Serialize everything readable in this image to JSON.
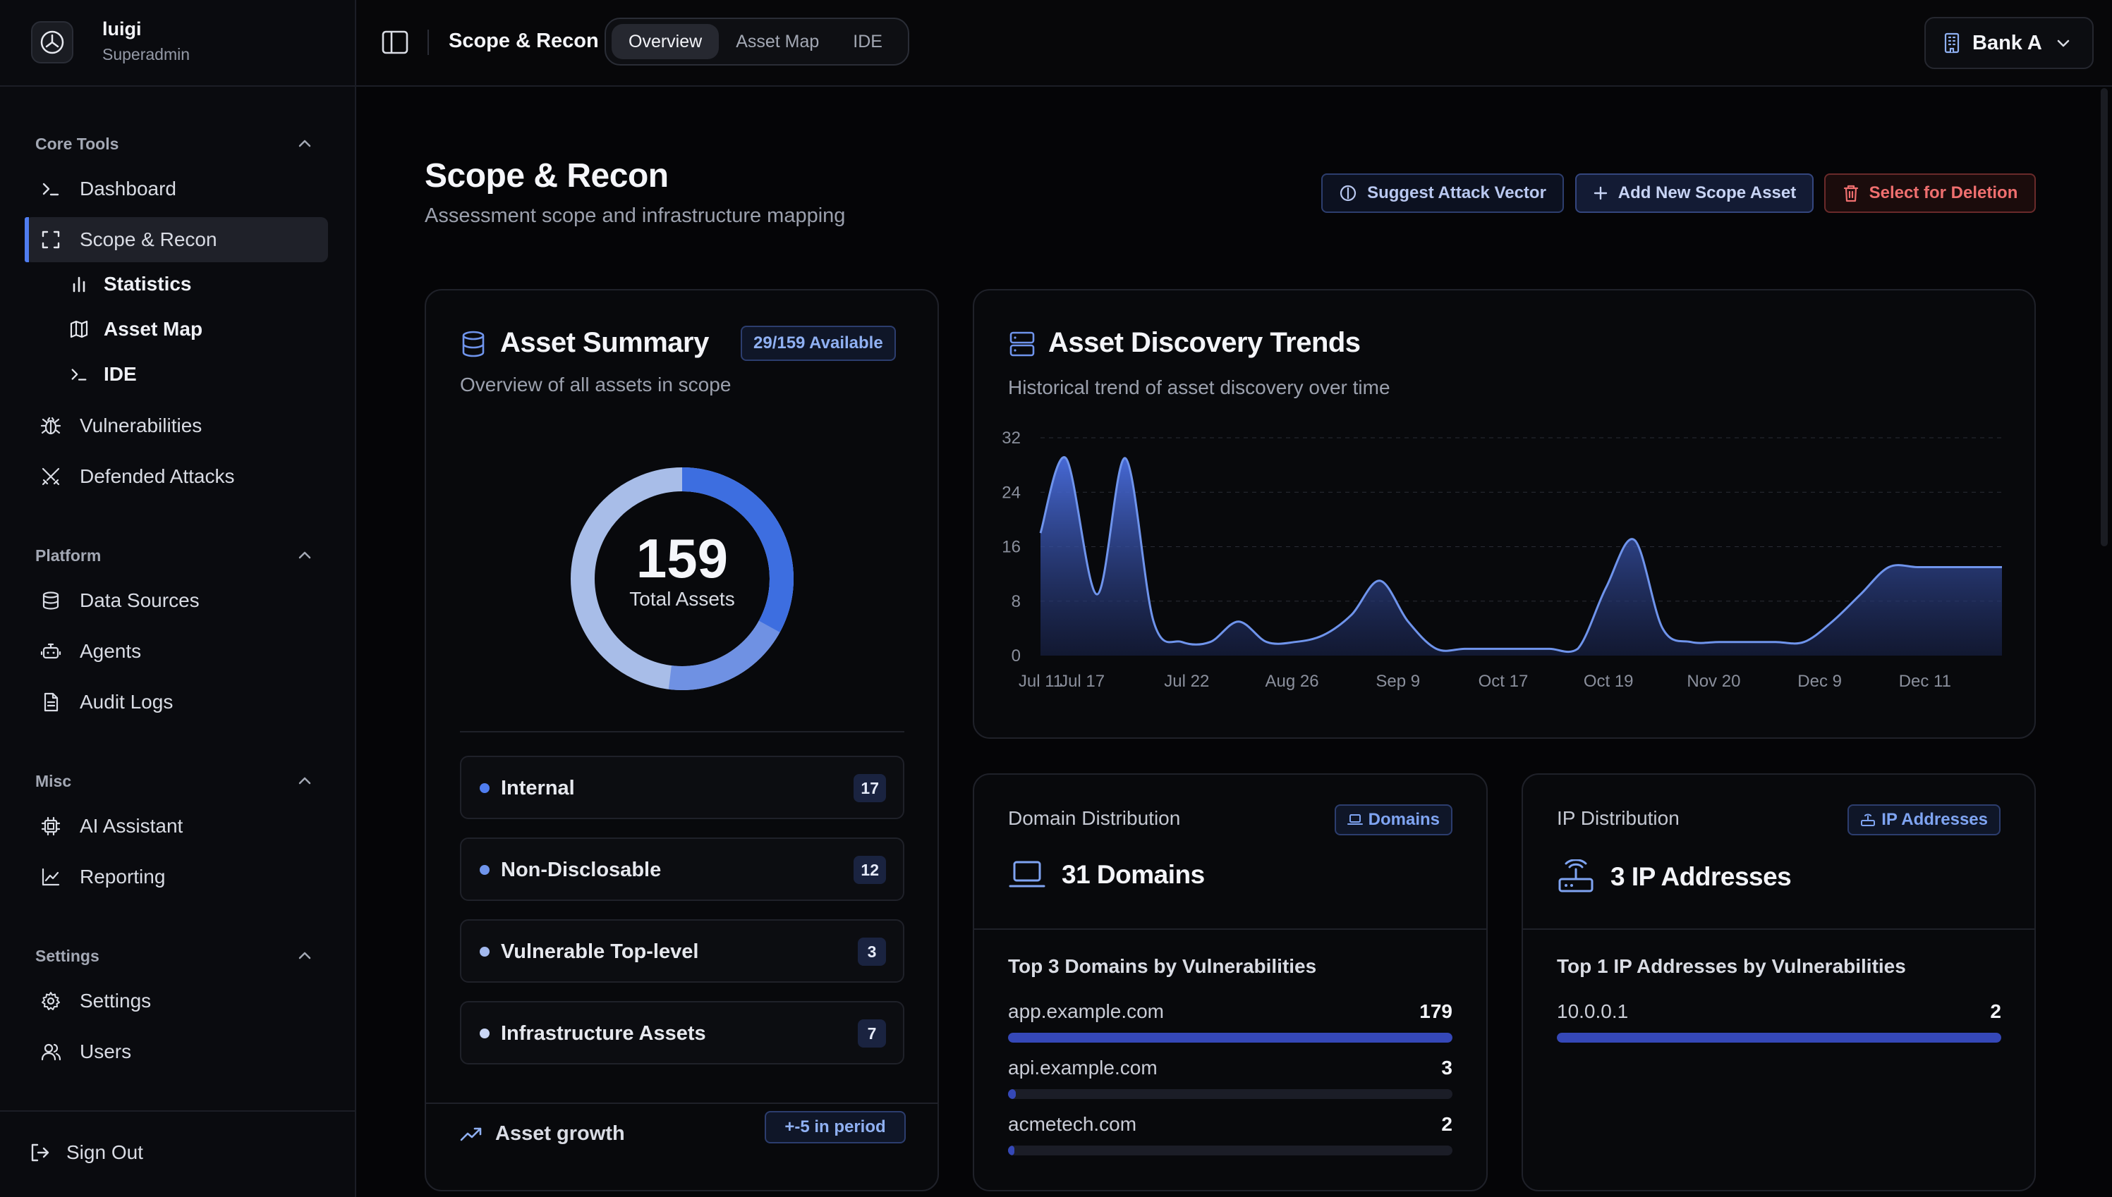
{
  "user": {
    "name": "luigi",
    "role": "Superadmin"
  },
  "sidebar": {
    "sections": {
      "core": "Core Tools",
      "platform": "Platform",
      "misc": "Misc",
      "settings": "Settings"
    },
    "items": {
      "dashboard": "Dashboard",
      "scope": "Scope & Recon",
      "statistics": "Statistics",
      "asset_map": "Asset Map",
      "ide": "IDE",
      "vulnerabilities": "Vulnerabilities",
      "defended": "Defended Attacks",
      "data_sources": "Data Sources",
      "agents": "Agents",
      "audit_logs": "Audit Logs",
      "ai_assistant": "AI Assistant",
      "reporting": "Reporting",
      "settings": "Settings",
      "users": "Users"
    },
    "sign_out": "Sign Out"
  },
  "topbar": {
    "title": "Scope & Recon",
    "tabs": [
      "Overview",
      "Asset Map",
      "IDE"
    ],
    "active_tab": "Overview",
    "org": "Bank A"
  },
  "page": {
    "title": "Scope & Recon",
    "subtitle": "Assessment scope and infrastructure mapping",
    "buttons": {
      "suggest": "Suggest Attack Vector",
      "add": "Add New Scope Asset",
      "delete": "Select for Deletion"
    }
  },
  "summary": {
    "title": "Asset Summary",
    "badge": "29/159 Available",
    "subtitle": "Overview of all assets in scope",
    "total": "159",
    "total_label": "Total Assets",
    "rows": [
      {
        "label": "Internal",
        "count": "17"
      },
      {
        "label": "Non-Disclosable",
        "count": "12"
      },
      {
        "label": "Vulnerable Top-level",
        "count": "3"
      },
      {
        "label": "Infrastructure Assets",
        "count": "7"
      }
    ],
    "growth_label": "Asset growth",
    "growth_badge": "+-5 in period"
  },
  "trends": {
    "title": "Asset Discovery Trends",
    "subtitle": "Historical trend of asset discovery over time"
  },
  "chart_data": {
    "type": "area",
    "title": "Asset Discovery Trends",
    "xlabel": "",
    "ylabel": "",
    "ylim": [
      0,
      32
    ],
    "yticks": [
      0,
      8,
      16,
      24,
      32
    ],
    "grid": true,
    "x_labels": [
      "Jul 11",
      "Jul 17",
      "Jul 22",
      "Aug 26",
      "Sep 9",
      "Oct 17",
      "Oct 19",
      "Nov 20",
      "Dec 9",
      "Dec 11"
    ],
    "x": [
      0,
      0.9,
      2,
      3,
      4,
      5,
      6,
      7,
      8,
      9,
      10,
      11,
      12,
      13,
      14,
      15,
      16,
      17,
      18,
      19,
      20,
      21,
      22,
      23,
      24,
      25,
      26,
      27,
      28,
      29,
      30,
      31,
      32,
      33,
      34
    ],
    "values": [
      18,
      29,
      9,
      29,
      5,
      2,
      2,
      5,
      2,
      2,
      3,
      6,
      11,
      5,
      1,
      1,
      1,
      1,
      1,
      1,
      10,
      17,
      4,
      2,
      2,
      2,
      2,
      2,
      5,
      9,
      13,
      13,
      13,
      13,
      13
    ]
  },
  "domains": {
    "heading": "Domain Distribution",
    "badge": "Domains",
    "count_label": "31 Domains",
    "top_label": "Top 3 Domains by Vulnerabilities",
    "rows": [
      {
        "name": "app.example.com",
        "value": "179",
        "fraction": 1.0
      },
      {
        "name": "api.example.com",
        "value": "3",
        "fraction": 0.017
      },
      {
        "name": "acmetech.com",
        "value": "2",
        "fraction": 0.011
      }
    ]
  },
  "ips": {
    "heading": "IP Distribution",
    "badge": "IP Addresses",
    "count_label": "3 IP Addresses",
    "top_label": "Top 1 IP Addresses by Vulnerabilities",
    "rows": [
      {
        "name": "10.0.0.1",
        "value": "2",
        "fraction": 1.0
      }
    ]
  },
  "colors": {
    "accent": "#4f7df0",
    "danger": "#ef6f6f",
    "bar": "#3548b8"
  }
}
